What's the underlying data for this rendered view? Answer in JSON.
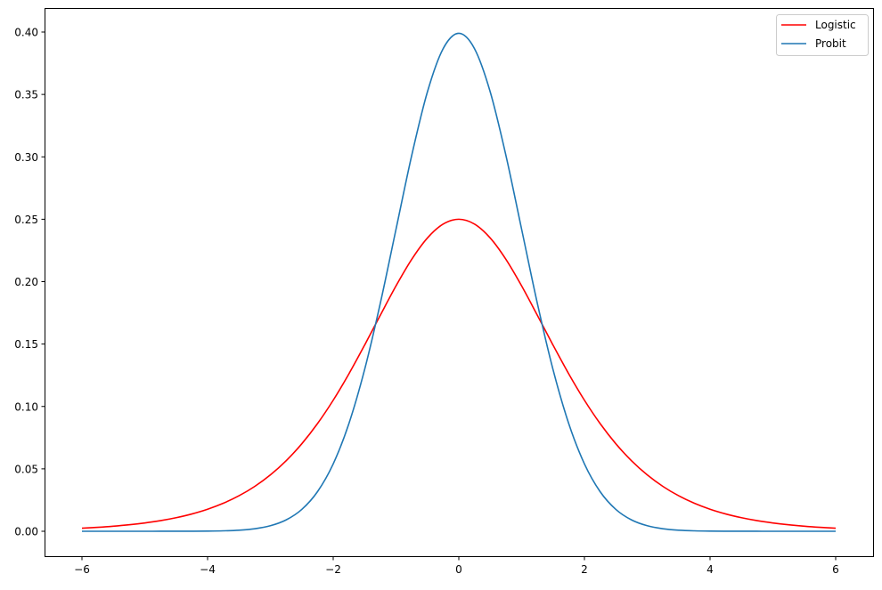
{
  "chart_data": {
    "type": "line",
    "title": "",
    "xlabel": "",
    "ylabel": "",
    "xlim": [
      -6.6,
      6.6
    ],
    "ylim": [
      -0.02,
      0.419
    ],
    "xticks": [
      -6,
      -4,
      -2,
      0,
      2,
      4,
      6
    ],
    "xtick_labels": [
      "−6",
      "−4",
      "−2",
      "0",
      "2",
      "4",
      "6"
    ],
    "yticks": [
      0,
      0.05,
      0.1,
      0.15,
      0.2,
      0.25,
      0.3,
      0.35,
      0.4
    ],
    "ytick_labels": [
      "0.00",
      "0.05",
      "0.10",
      "0.15",
      "0.20",
      "0.25",
      "0.30",
      "0.35",
      "0.40"
    ],
    "grid": false,
    "legend_placement": "top-right",
    "x": [
      -6,
      -5.75,
      -5.5,
      -5.25,
      -5,
      -4.75,
      -4.5,
      -4.25,
      -4,
      -3.75,
      -3.5,
      -3.25,
      -3,
      -2.75,
      -2.5,
      -2.25,
      -2,
      -1.75,
      -1.5,
      -1.25,
      -1,
      -0.75,
      -0.5,
      -0.25,
      0,
      0.25,
      0.5,
      0.75,
      1,
      1.25,
      1.5,
      1.75,
      2,
      2.25,
      2.5,
      2.75,
      3,
      3.25,
      3.5,
      3.75,
      4,
      4.25,
      4.5,
      4.75,
      5,
      5.25,
      5.5,
      5.75,
      6
    ],
    "series": [
      {
        "name": "Logistic",
        "color": "#ff0000",
        "values": [
          0.00247,
          0.00316,
          0.00405,
          0.00519,
          0.00665,
          0.0085,
          0.01087,
          0.01387,
          0.01766,
          0.02245,
          0.02845,
          0.03593,
          0.04518,
          0.05648,
          0.0701,
          0.08626,
          0.10499,
          0.12613,
          0.14915,
          0.1731,
          0.19661,
          0.21789,
          0.235,
          0.24613,
          0.25,
          0.24613,
          0.235,
          0.21789,
          0.19661,
          0.1731,
          0.14915,
          0.12613,
          0.10499,
          0.08626,
          0.0701,
          0.05648,
          0.04518,
          0.03593,
          0.02845,
          0.02245,
          0.01766,
          0.01387,
          0.01087,
          0.0085,
          0.00665,
          0.00519,
          0.00405,
          0.00316,
          0.00247
        ]
      },
      {
        "name": "Probit",
        "color": "#1f77b4",
        "values": [
          0,
          0,
          0,
          0,
          0,
          1e-05,
          2e-05,
          5e-05,
          0.00013,
          0.00035,
          0.00087,
          0.00203,
          0.00443,
          0.00909,
          0.01753,
          0.03174,
          0.05399,
          0.08628,
          0.12952,
          0.18265,
          0.24197,
          0.30114,
          0.35207,
          0.38667,
          0.39894,
          0.38667,
          0.35207,
          0.30114,
          0.24197,
          0.18265,
          0.12952,
          0.08628,
          0.05399,
          0.03174,
          0.01753,
          0.00909,
          0.00443,
          0.00203,
          0.00087,
          0.00035,
          0.00013,
          5e-05,
          2e-05,
          1e-05,
          0,
          0,
          0,
          0,
          0
        ]
      }
    ]
  }
}
